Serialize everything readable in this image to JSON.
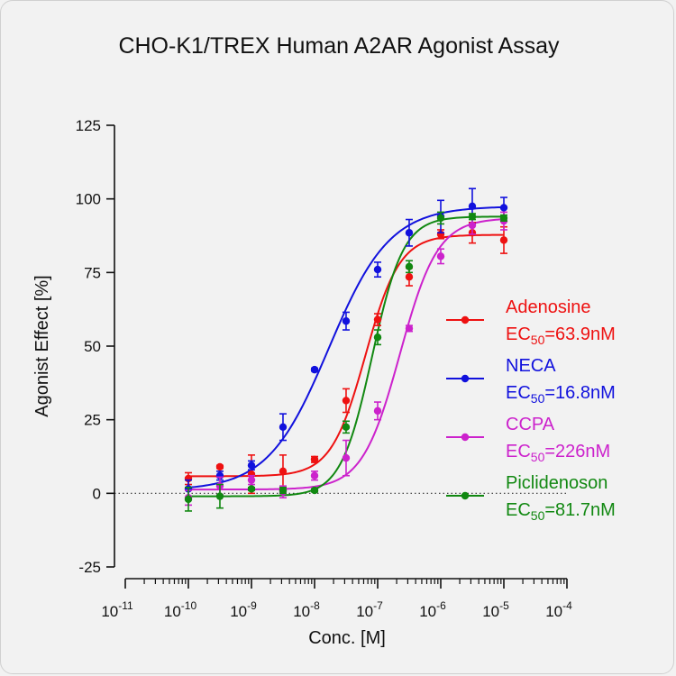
{
  "chart_data": {
    "type": "scatter",
    "title": "CHO-K1/TREX Human A2AR Agonist Assay",
    "xlabel": "Conc. [M]",
    "ylabel": "Agonist Effect [%]",
    "x_scale": "log10",
    "xlim": [
      1e-11,
      0.0001
    ],
    "ylim": [
      -25,
      125
    ],
    "x_ticks": [
      {
        "base": "10",
        "exp": "-11"
      },
      {
        "base": "10",
        "exp": "-10"
      },
      {
        "base": "10",
        "exp": "-9"
      },
      {
        "base": "10",
        "exp": "-8"
      },
      {
        "base": "10",
        "exp": "-7"
      },
      {
        "base": "10",
        "exp": "-6"
      },
      {
        "base": "10",
        "exp": "-5"
      },
      {
        "base": "10",
        "exp": "-4"
      }
    ],
    "y_ticks": [
      "-25",
      "0",
      "25",
      "50",
      "75",
      "100",
      "125"
    ],
    "zero_reference_line": true,
    "legend_position": "right",
    "x": [
      1e-10,
      3.16e-10,
      1e-09,
      3.16e-09,
      1e-08,
      3.16e-08,
      1e-07,
      3.16e-07,
      1e-06,
      3.16e-06,
      1e-05
    ],
    "series": [
      {
        "name": "Adenosine",
        "ec50_prefix": "EC",
        "ec50_sub": "50",
        "ec50_value": "=63.9nM",
        "color": "#ee1111",
        "bottom": 5.8,
        "top": 87.8,
        "ec50_molar": 6.39e-08,
        "hill": 1.6,
        "values": [
          5.0,
          9.0,
          6.5,
          7.5,
          11.5,
          31.5,
          59.0,
          73.5,
          88.0,
          88.5,
          86.0
        ],
        "errors": [
          2,
          0.5,
          6.5,
          5.5,
          1,
          4,
          2,
          3,
          1.5,
          3.5,
          4.5
        ]
      },
      {
        "name": "NECA",
        "ec50_prefix": "EC",
        "ec50_sub": "50",
        "ec50_value": "=16.8nM",
        "color": "#1111dd",
        "bottom": 1.0,
        "top": 97.5,
        "ec50_molar": 1.68e-08,
        "hill": 0.9,
        "values": [
          1.5,
          6.0,
          9.5,
          22.5,
          42.0,
          58.5,
          76.0,
          88.5,
          94.0,
          97.5,
          97.0
        ],
        "errors": [
          3,
          1.5,
          1.5,
          4.5,
          0.5,
          3,
          2.5,
          4.5,
          5.5,
          6,
          3.5
        ]
      },
      {
        "name": "CCPA",
        "ec50_prefix": "EC",
        "ec50_sub": "50",
        "ec50_value": "=226nM",
        "color": "#cc22cc",
        "bottom": 1.3,
        "top": 93.5,
        "ec50_molar": 2.26e-07,
        "hill": 1.45,
        "values": [
          -1.5,
          2.5,
          4.5,
          0.5,
          6.0,
          12.0,
          28.0,
          56.0,
          80.5,
          91.0,
          92.5
        ],
        "errors": [
          2.5,
          3,
          1.5,
          2,
          1.5,
          6,
          3,
          1,
          2.5,
          3,
          3
        ]
      },
      {
        "name": "Piclidenoson",
        "ec50_prefix": "EC",
        "ec50_sub": "50",
        "ec50_value": "=81.7nM",
        "color": "#118811",
        "bottom": -1.0,
        "top": 94.0,
        "ec50_molar": 8.17e-08,
        "hill": 1.75,
        "values": [
          -2.0,
          -1.0,
          1.5,
          1.0,
          1.0,
          22.5,
          53.0,
          77.0,
          93.5,
          94.0,
          93.5
        ],
        "errors": [
          4,
          4,
          0.5,
          1,
          0.5,
          2,
          2.5,
          2,
          2,
          1,
          1
        ]
      }
    ]
  }
}
